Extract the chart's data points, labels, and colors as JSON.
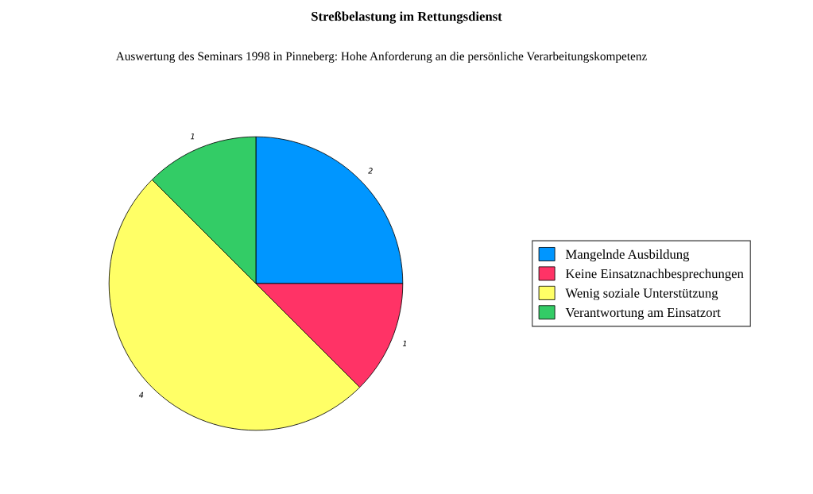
{
  "chart_data": {
    "type": "pie",
    "title": "Streßbelastung im Rettungsdienst",
    "subtitle": "Auswertung des Seminars 1998 in Pinneberg: Hohe Anforderung an die persönliche Verarbeitungskompetenz",
    "categories": [
      "Mangelnde Ausbildung",
      "Keine Einsatznachbesprechungen",
      "Wenig soziale Unterstützung",
      "Verantwortung am Einsatzort"
    ],
    "values": [
      2,
      1,
      4,
      1
    ],
    "colors": [
      "#0096ff",
      "#ff3366",
      "#ffff66",
      "#33cc66"
    ],
    "data_labels": true,
    "legend": "right"
  }
}
